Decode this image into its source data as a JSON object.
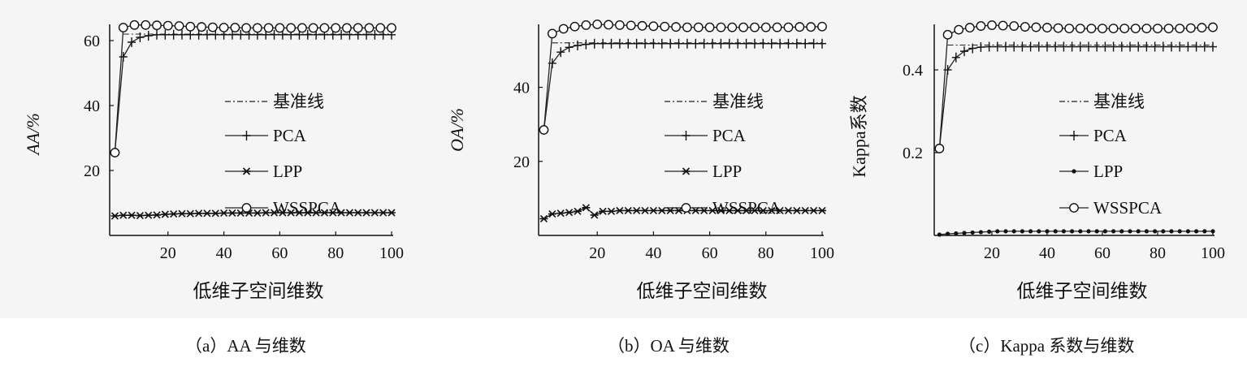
{
  "captions": {
    "a": "（a）AA 与维数",
    "b": "（b）OA 与维数",
    "c": "（c）Kappa 系数与维数"
  },
  "legend": {
    "baseline": "基准线",
    "pca": "PCA",
    "lpp": "LPP",
    "wsspca": "WSSPCA"
  },
  "chart_data": [
    {
      "type": "line",
      "panel": "a",
      "title": "",
      "xlabel": "低维子空间维数",
      "ylabel": "AA/%",
      "xlim": [
        0,
        100
      ],
      "ylim": [
        0,
        65
      ],
      "xticks": [
        "20",
        "40",
        "60",
        "80",
        "100"
      ],
      "yticks": [
        "20",
        "40",
        "60"
      ],
      "yticks_values": [
        20,
        40,
        60
      ],
      "legend_position": "center-right",
      "grid": false,
      "series": [
        {
          "name": "基准线",
          "style": "dash-dot",
          "x": [
            4,
            100
          ],
          "y": [
            62,
            62
          ]
        },
        {
          "name": "PCA",
          "marker": "plus",
          "x": [
            1,
            4,
            7,
            10,
            13,
            16,
            19,
            22,
            25,
            28,
            31,
            34,
            37,
            40,
            43,
            46,
            49,
            52,
            55,
            58,
            61,
            64,
            67,
            70,
            73,
            76,
            79,
            82,
            85,
            88,
            91,
            94,
            97,
            100
          ],
          "y": [
            25.5,
            55,
            59.5,
            61,
            61.5,
            61.8,
            61.8,
            61.8,
            61.8,
            61.8,
            61.8,
            61.8,
            61.8,
            61.8,
            61.8,
            61.8,
            61.8,
            61.8,
            61.8,
            61.8,
            61.8,
            61.8,
            61.8,
            61.8,
            61.8,
            61.8,
            61.8,
            61.8,
            61.8,
            61.8,
            61.8,
            61.8,
            61.8,
            61.8
          ]
        },
        {
          "name": "LPP",
          "marker": "star",
          "x": [
            1,
            4,
            7,
            10,
            13,
            16,
            19,
            22,
            25,
            28,
            31,
            34,
            37,
            40,
            43,
            46,
            49,
            52,
            55,
            58,
            61,
            64,
            67,
            70,
            73,
            76,
            79,
            82,
            85,
            88,
            91,
            94,
            97,
            100
          ],
          "y": [
            6,
            6.2,
            6.2,
            6.1,
            6.2,
            6.3,
            6.5,
            6.6,
            6.7,
            6.7,
            6.8,
            6.8,
            6.8,
            6.9,
            6.9,
            6.9,
            6.9,
            6.9,
            7,
            7,
            7,
            7,
            7,
            7,
            7,
            7,
            7,
            7,
            7,
            7,
            7,
            7,
            7,
            7
          ]
        },
        {
          "name": "WSSPCA",
          "marker": "circle",
          "x": [
            1,
            4,
            8,
            12,
            16,
            20,
            24,
            28,
            32,
            36,
            40,
            44,
            48,
            52,
            56,
            60,
            64,
            68,
            72,
            76,
            80,
            84,
            88,
            92,
            96,
            100
          ],
          "y": [
            25.5,
            64,
            64.8,
            64.8,
            64.7,
            64.6,
            64.5,
            64.3,
            64.2,
            64.1,
            64,
            64,
            63.9,
            63.9,
            63.9,
            63.9,
            63.9,
            63.9,
            63.9,
            63.9,
            63.9,
            63.9,
            63.9,
            63.9,
            63.9,
            63.9
          ]
        }
      ]
    },
    {
      "type": "line",
      "panel": "b",
      "title": "",
      "xlabel": "低维子空间维数",
      "ylabel": "OA/%",
      "xlim": [
        0,
        100
      ],
      "ylim": [
        0,
        57
      ],
      "xticks": [
        "20",
        "40",
        "60",
        "80",
        "100"
      ],
      "yticks": [
        "20",
        "40"
      ],
      "yticks_values": [
        20,
        40
      ],
      "legend_position": "center-right",
      "grid": false,
      "series": [
        {
          "name": "基准线",
          "style": "dash-dot",
          "x": [
            4,
            100
          ],
          "y": [
            52,
            52
          ]
        },
        {
          "name": "PCA",
          "marker": "plus",
          "x": [
            1,
            4,
            7,
            10,
            13,
            16,
            19,
            22,
            25,
            28,
            31,
            34,
            37,
            40,
            43,
            46,
            49,
            52,
            55,
            58,
            61,
            64,
            67,
            70,
            73,
            76,
            79,
            82,
            85,
            88,
            91,
            94,
            97,
            100
          ],
          "y": [
            28.5,
            46.5,
            49.5,
            50.8,
            51.3,
            51.6,
            51.8,
            51.8,
            51.8,
            51.8,
            51.8,
            51.8,
            51.8,
            51.8,
            51.8,
            51.8,
            51.8,
            51.8,
            51.8,
            51.8,
            51.8,
            51.8,
            51.8,
            51.8,
            51.8,
            51.8,
            51.8,
            51.8,
            51.8,
            51.8,
            51.8,
            51.8,
            51.8,
            51.8
          ]
        },
        {
          "name": "LPP",
          "marker": "star",
          "x": [
            1,
            4,
            7,
            10,
            13,
            16,
            19,
            22,
            25,
            28,
            31,
            34,
            37,
            40,
            43,
            46,
            49,
            52,
            55,
            58,
            61,
            64,
            67,
            70,
            73,
            76,
            79,
            82,
            85,
            88,
            91,
            94,
            97,
            100
          ],
          "y": [
            4.5,
            5.8,
            6,
            6.2,
            6.5,
            7.5,
            5.5,
            6.5,
            6.5,
            6.7,
            6.7,
            6.7,
            6.7,
            6.7,
            6.7,
            6.7,
            6.7,
            6.7,
            6.7,
            6.7,
            6.7,
            6.7,
            6.7,
            6.7,
            6.7,
            6.7,
            6.7,
            6.7,
            6.7,
            6.7,
            6.7,
            6.7,
            6.7,
            6.7
          ]
        },
        {
          "name": "WSSPCA",
          "marker": "circle",
          "x": [
            1,
            4,
            8,
            12,
            16,
            20,
            24,
            28,
            32,
            36,
            40,
            44,
            48,
            52,
            56,
            60,
            64,
            68,
            72,
            76,
            80,
            84,
            88,
            92,
            96,
            100
          ],
          "y": [
            28.5,
            54.5,
            55.8,
            56.4,
            56.8,
            57,
            56.9,
            56.8,
            56.7,
            56.6,
            56.5,
            56.4,
            56.3,
            56.2,
            56.2,
            56.2,
            56.2,
            56.2,
            56.2,
            56.2,
            56.2,
            56.2,
            56.2,
            56.3,
            56.3,
            56.4
          ]
        }
      ]
    },
    {
      "type": "line",
      "panel": "c",
      "title": "",
      "xlabel": "低维子空间维数",
      "ylabel": "Kappa系数",
      "xlim": [
        0,
        100
      ],
      "ylim": [
        0,
        0.51
      ],
      "xticks": [
        "20",
        "40",
        "60",
        "80",
        "100"
      ],
      "yticks": [
        "0.2",
        "0.4"
      ],
      "yticks_values": [
        0.2,
        0.4
      ],
      "legend_position": "center-right",
      "grid": false,
      "series": [
        {
          "name": "基准线",
          "style": "dash-dot",
          "x": [
            4,
            100
          ],
          "y": [
            0.46,
            0.46
          ]
        },
        {
          "name": "PCA",
          "marker": "plus",
          "x": [
            1,
            4,
            7,
            10,
            13,
            16,
            19,
            22,
            25,
            28,
            31,
            34,
            37,
            40,
            43,
            46,
            49,
            52,
            55,
            58,
            61,
            64,
            67,
            70,
            73,
            76,
            79,
            82,
            85,
            88,
            91,
            94,
            97,
            100
          ],
          "y": [
            0.21,
            0.4,
            0.43,
            0.445,
            0.452,
            0.455,
            0.456,
            0.456,
            0.456,
            0.456,
            0.456,
            0.456,
            0.456,
            0.456,
            0.456,
            0.456,
            0.456,
            0.456,
            0.456,
            0.456,
            0.456,
            0.456,
            0.456,
            0.456,
            0.456,
            0.456,
            0.456,
            0.456,
            0.456,
            0.456,
            0.456,
            0.456,
            0.456,
            0.456
          ]
        },
        {
          "name": "LPP",
          "marker": "dot",
          "x": [
            1,
            4,
            7,
            10,
            13,
            16,
            19,
            22,
            25,
            28,
            31,
            34,
            37,
            40,
            43,
            46,
            49,
            52,
            55,
            58,
            61,
            64,
            67,
            70,
            73,
            76,
            79,
            82,
            85,
            88,
            91,
            94,
            97,
            100
          ],
          "y": [
            0.002,
            0.004,
            0.005,
            0.006,
            0.007,
            0.008,
            0.009,
            0.01,
            0.01,
            0.01,
            0.01,
            0.01,
            0.01,
            0.01,
            0.01,
            0.01,
            0.01,
            0.01,
            0.01,
            0.01,
            0.01,
            0.01,
            0.01,
            0.01,
            0.01,
            0.01,
            0.01,
            0.01,
            0.01,
            0.01,
            0.01,
            0.01,
            0.01,
            0.01
          ]
        },
        {
          "name": "WSSPCA",
          "marker": "circle",
          "x": [
            1,
            4,
            8,
            12,
            16,
            20,
            24,
            28,
            32,
            36,
            40,
            44,
            48,
            52,
            56,
            60,
            64,
            68,
            72,
            76,
            80,
            84,
            88,
            92,
            96,
            100
          ],
          "y": [
            0.21,
            0.485,
            0.497,
            0.502,
            0.506,
            0.508,
            0.507,
            0.506,
            0.504,
            0.503,
            0.502,
            0.501,
            0.5,
            0.5,
            0.5,
            0.5,
            0.5,
            0.5,
            0.5,
            0.5,
            0.5,
            0.5,
            0.5,
            0.501,
            0.502,
            0.503
          ]
        }
      ]
    }
  ]
}
